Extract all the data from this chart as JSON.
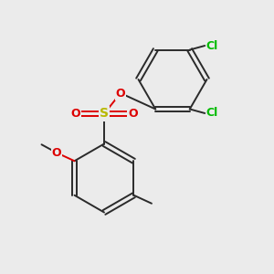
{
  "bg_color": "#ebebeb",
  "bond_color": "#2a2a2a",
  "sulfur_color": "#b8b800",
  "oxygen_color": "#dd0000",
  "chlorine_color": "#00bb00",
  "figsize": [
    3.0,
    3.0
  ],
  "dpi": 100,
  "xlim": [
    0,
    10
  ],
  "ylim": [
    0,
    10
  ]
}
